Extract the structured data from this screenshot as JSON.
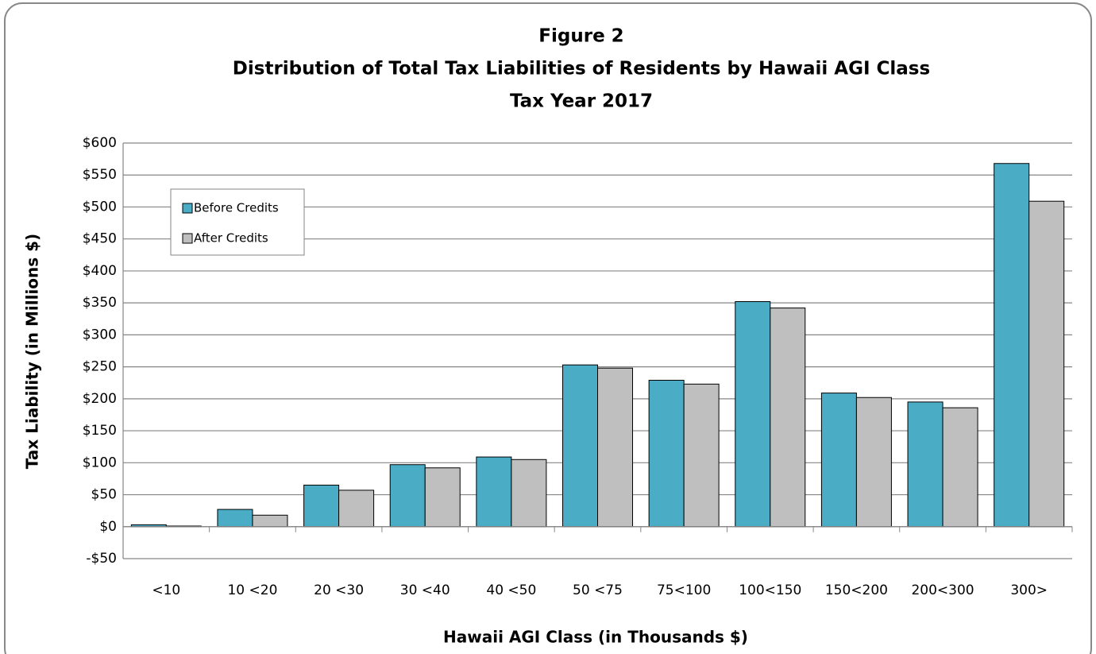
{
  "chart_data": {
    "type": "bar",
    "title": [
      "Figure 2",
      "Distribution of Total Tax Liabilities of Residents by Hawaii AGI Class",
      "Tax Year 2017"
    ],
    "xlabel": "Hawaii AGI Class (in Thousands $)",
    "ylabel": "Tax Liability (in Millions $)",
    "categories": [
      "<10",
      "10 <20",
      "20 <30",
      "30 <40",
      "40 <50",
      "50 <75",
      "75<100",
      "100<150",
      "150<200",
      "200<300",
      "300>"
    ],
    "series": [
      {
        "name": "Before Credits",
        "color": "#4bacc6",
        "values": [
          3,
          27,
          65,
          97,
          109,
          253,
          229,
          352,
          209,
          195,
          568
        ]
      },
      {
        "name": "After Credits",
        "color": "#bfbfbf",
        "values": [
          1,
          18,
          57,
          92,
          105,
          248,
          223,
          342,
          202,
          186,
          509
        ]
      }
    ],
    "ylim": [
      -50,
      600
    ],
    "yticks": [
      {
        "value": -50,
        "label": "-$50"
      },
      {
        "value": 0,
        "label": "$0"
      },
      {
        "value": 50,
        "label": "$50"
      },
      {
        "value": 100,
        "label": "$100"
      },
      {
        "value": 150,
        "label": "$150"
      },
      {
        "value": 200,
        "label": "$200"
      },
      {
        "value": 250,
        "label": "$250"
      },
      {
        "value": 300,
        "label": "$300"
      },
      {
        "value": 350,
        "label": "$350"
      },
      {
        "value": 400,
        "label": "$400"
      },
      {
        "value": 450,
        "label": "$450"
      },
      {
        "value": 500,
        "label": "$500"
      },
      {
        "value": 550,
        "label": "$550"
      },
      {
        "value": 600,
        "label": "$600"
      }
    ],
    "grid": true,
    "legend": "upper-left"
  }
}
